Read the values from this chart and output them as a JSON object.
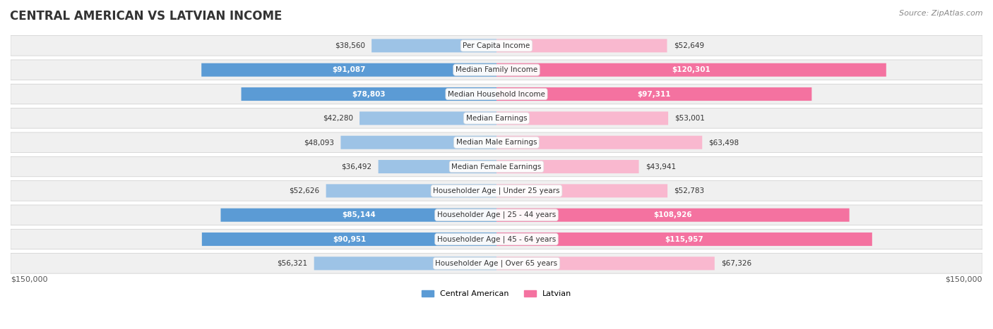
{
  "title": "CENTRAL AMERICAN VS LATVIAN INCOME",
  "source": "Source: ZipAtlas.com",
  "categories": [
    "Per Capita Income",
    "Median Family Income",
    "Median Household Income",
    "Median Earnings",
    "Median Male Earnings",
    "Median Female Earnings",
    "Householder Age | Under 25 years",
    "Householder Age | 25 - 44 years",
    "Householder Age | 45 - 64 years",
    "Householder Age | Over 65 years"
  ],
  "central_american": [
    38560,
    91087,
    78803,
    42280,
    48093,
    36492,
    52626,
    85144,
    90951,
    56321
  ],
  "latvian": [
    52649,
    120301,
    97311,
    53001,
    63498,
    43941,
    52783,
    108926,
    115957,
    67326
  ],
  "central_american_labels": [
    "$38,560",
    "$91,087",
    "$78,803",
    "$42,280",
    "$48,093",
    "$36,492",
    "$52,626",
    "$85,144",
    "$90,951",
    "$56,321"
  ],
  "latvian_labels": [
    "$52,649",
    "$120,301",
    "$97,311",
    "$53,001",
    "$63,498",
    "$43,941",
    "$52,783",
    "$108,926",
    "$115,957",
    "$67,326"
  ],
  "max_value": 150000,
  "color_ca_dark": "#5b9bd5",
  "color_ca_light": "#9dc3e6",
  "color_lv_dark": "#f472a0",
  "color_lv_light": "#f9b8cf",
  "bg_row_light": "#f5f5f5",
  "bg_row_dark": "#ebebeb",
  "label_color_dark_ca": "#ffffff",
  "label_color_dark_lv": "#ffffff",
  "label_color_light": "#555555",
  "ca_dark_threshold": 60000,
  "lv_dark_threshold": 80000,
  "axis_label_left": "$150,000",
  "axis_label_right": "$150,000",
  "legend_ca": "Central American",
  "legend_lv": "Latvian"
}
